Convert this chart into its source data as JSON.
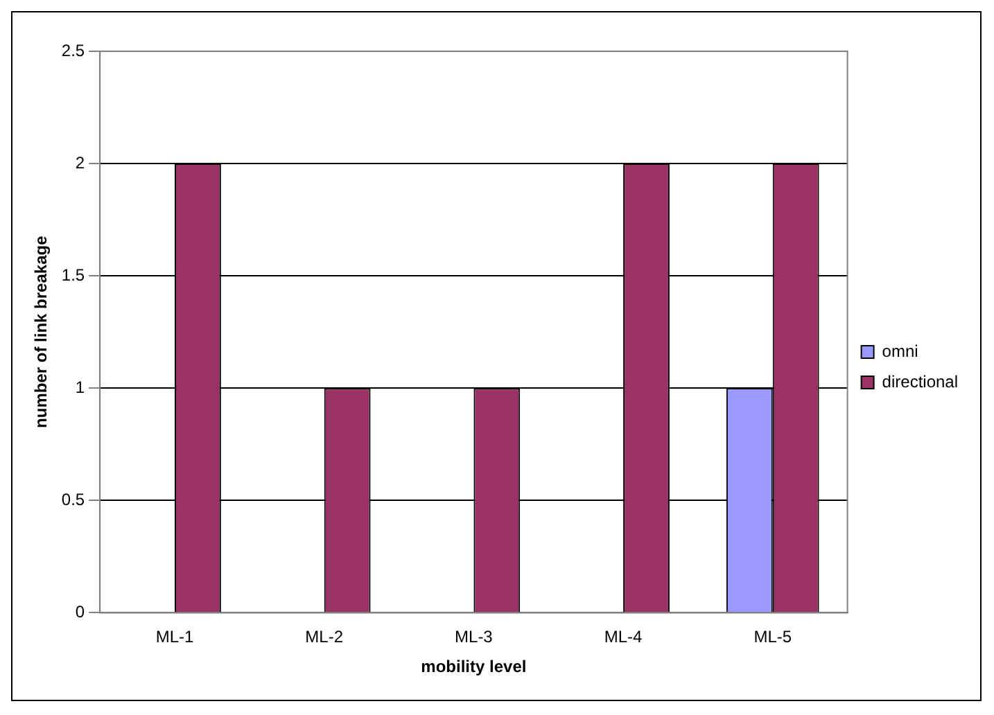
{
  "chart_data": {
    "type": "bar",
    "xlabel": "mobility level",
    "ylabel": "number of link breakage",
    "categories": [
      "ML-1",
      "ML-2",
      "ML-3",
      "ML-4",
      "ML-5"
    ],
    "series": [
      {
        "name": "omni",
        "color": "#9999ff",
        "values": [
          0,
          0,
          0,
          0,
          1
        ]
      },
      {
        "name": "directional",
        "color": "#993366",
        "values": [
          2,
          1,
          1,
          2,
          2
        ]
      }
    ],
    "ylim": [
      0,
      2.5
    ],
    "yticks": [
      0,
      0.5,
      1,
      1.5,
      2,
      2.5
    ],
    "grid": "y",
    "legend": "right"
  }
}
